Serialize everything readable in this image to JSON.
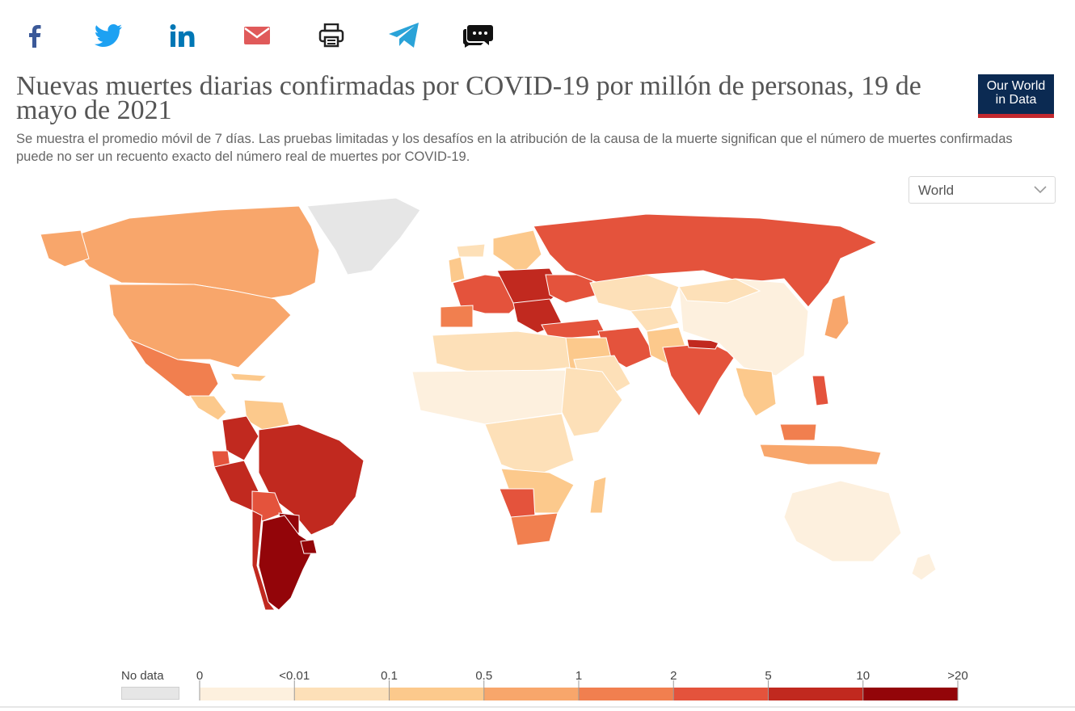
{
  "share": {
    "icons": [
      "facebook-icon",
      "twitter-icon",
      "linkedin-icon",
      "email-icon",
      "print-icon",
      "telegram-icon",
      "comments-icon"
    ]
  },
  "header": {
    "title": "Nuevas muertes diarias confirmadas por COVID-19 por millón de personas, 19 de mayo de 2021",
    "subtitle": "Se muestra el promedio móvil de 7 días. Las pruebas limitadas y los desafíos en la atribución de la causa de la muerte significan que el número de muertes confirmadas puede no ser un recuento exacto del número real de muertes por COVID-19.",
    "logo_line1": "Our World",
    "logo_line2": "in Data"
  },
  "region_select": {
    "value": "World"
  },
  "legend": {
    "no_data_label": "No data",
    "no_data_color": "#e6e6e6",
    "ticks": [
      "0",
      "<0.01",
      "0.1",
      "0.5",
      "1",
      "2",
      "5",
      "10",
      ">20"
    ],
    "bins": [
      {
        "color": "#fdf0de"
      },
      {
        "color": "#fde0b8"
      },
      {
        "color": "#fcc98c"
      },
      {
        "color": "#f8a66b"
      },
      {
        "color": "#f17f4f"
      },
      {
        "color": "#e4533c"
      },
      {
        "color": "#c1291f"
      },
      {
        "color": "#930509"
      }
    ]
  },
  "colors": {
    "accent_red": "#c2282e",
    "logo_navy": "#0b2a52",
    "facebook": "#3b5998",
    "twitter": "#1da1f2",
    "linkedin": "#0077b5",
    "email": "#e05a5a",
    "telegram": "#2aa3d8"
  }
}
